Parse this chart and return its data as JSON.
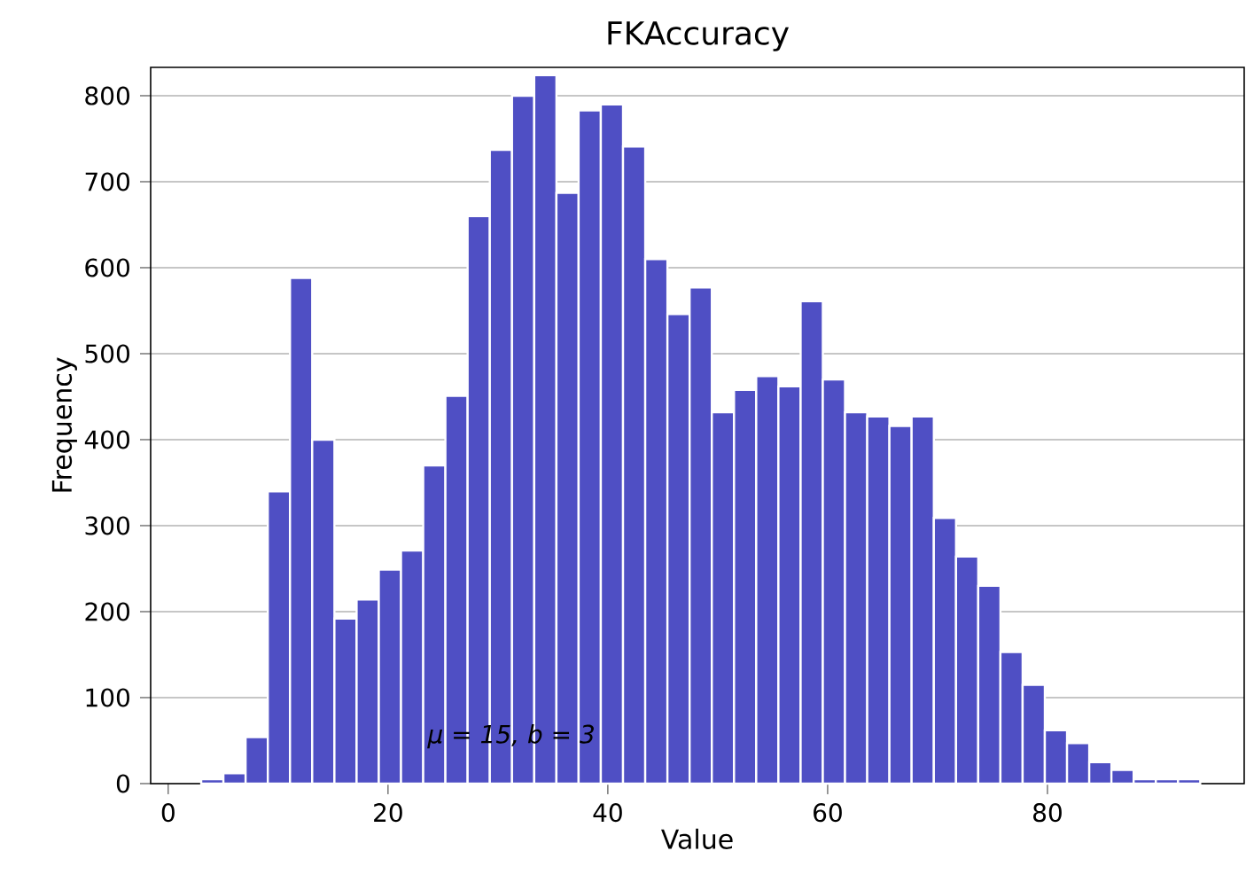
{
  "chart_data": {
    "type": "histogram",
    "title": "FKAccuracy",
    "xlabel": "Value",
    "ylabel": "Frequency",
    "bins": [
      3.0,
      5.02,
      7.04,
      9.06,
      11.08,
      13.1,
      15.12,
      17.14,
      19.16,
      21.18,
      23.2,
      25.22,
      27.24,
      29.26,
      31.28,
      33.3,
      35.32,
      37.34,
      39.36,
      41.38,
      43.4,
      45.42,
      47.44,
      49.46,
      51.48,
      53.5,
      55.52,
      57.54,
      59.56,
      61.58,
      63.6,
      65.62,
      67.64,
      69.66,
      71.68,
      73.7,
      75.72,
      77.74,
      79.76,
      81.78,
      83.8,
      85.82,
      87.84,
      89.86,
      91.88,
      93.9
    ],
    "values": [
      5,
      12,
      54,
      340,
      588,
      400,
      192,
      214,
      249,
      271,
      370,
      451,
      660,
      737,
      800,
      824,
      687,
      783,
      790,
      741,
      610,
      546,
      577,
      432,
      458,
      474,
      462,
      561,
      470,
      432,
      427,
      416,
      427,
      309,
      264,
      230,
      153,
      115,
      62,
      47,
      25,
      16,
      5,
      5,
      5
    ],
    "color": "#4f4fc4",
    "xlim": [
      -1.6,
      97.9
    ],
    "ylim": [
      0,
      833
    ],
    "xticks": [
      0,
      20,
      40,
      60,
      80
    ],
    "yticks": [
      0,
      100,
      200,
      300,
      400,
      500,
      600,
      700,
      800
    ],
    "grid": "y",
    "annotations": [
      "μ = 15, b = 3"
    ]
  }
}
